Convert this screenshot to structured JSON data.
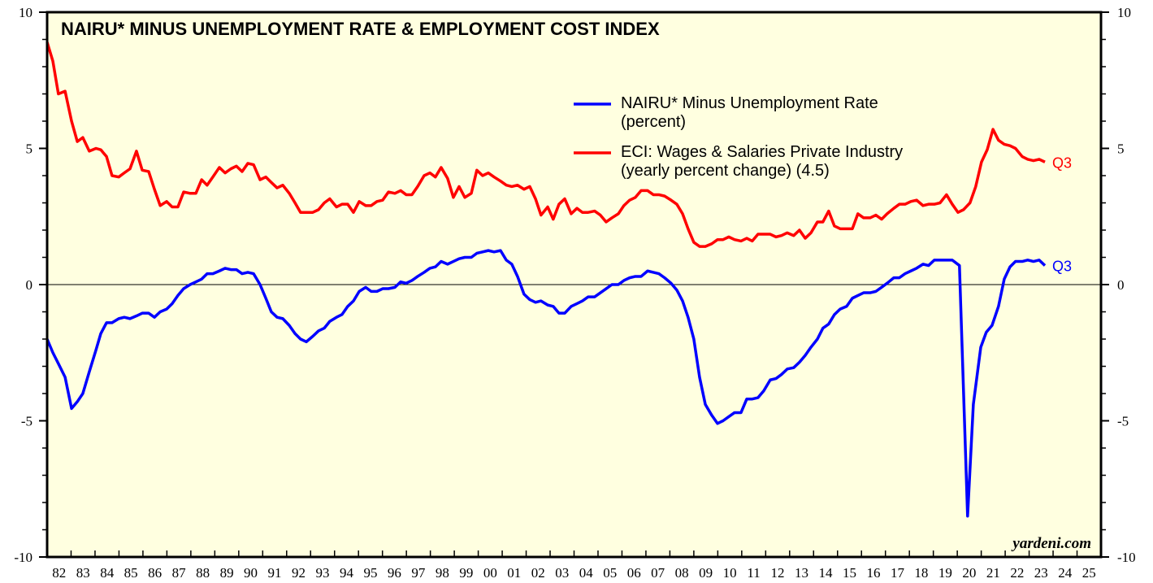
{
  "chart_data": {
    "type": "line",
    "title": "NAIRU* MINUS UNEMPLOYMENT RATE & EMPLOYMENT COST INDEX",
    "credit": "yardeni.com",
    "xlim": [
      1982,
      2026
    ],
    "xticks": [
      {
        "value": 1982,
        "label": "82"
      },
      {
        "value": 1983,
        "label": "83"
      },
      {
        "value": 1984,
        "label": "84"
      },
      {
        "value": 1985,
        "label": "85"
      },
      {
        "value": 1986,
        "label": "86"
      },
      {
        "value": 1987,
        "label": "87"
      },
      {
        "value": 1988,
        "label": "88"
      },
      {
        "value": 1989,
        "label": "89"
      },
      {
        "value": 1990,
        "label": "90"
      },
      {
        "value": 1991,
        "label": "91"
      },
      {
        "value": 1992,
        "label": "92"
      },
      {
        "value": 1993,
        "label": "93"
      },
      {
        "value": 1994,
        "label": "94"
      },
      {
        "value": 1995,
        "label": "95"
      },
      {
        "value": 1996,
        "label": "96"
      },
      {
        "value": 1997,
        "label": "97"
      },
      {
        "value": 1998,
        "label": "98"
      },
      {
        "value": 1999,
        "label": "99"
      },
      {
        "value": 2000,
        "label": "00"
      },
      {
        "value": 2001,
        "label": "01"
      },
      {
        "value": 2002,
        "label": "02"
      },
      {
        "value": 2003,
        "label": "03"
      },
      {
        "value": 2004,
        "label": "04"
      },
      {
        "value": 2005,
        "label": "05"
      },
      {
        "value": 2006,
        "label": "06"
      },
      {
        "value": 2007,
        "label": "07"
      },
      {
        "value": 2008,
        "label": "08"
      },
      {
        "value": 2009,
        "label": "09"
      },
      {
        "value": 2010,
        "label": "10"
      },
      {
        "value": 2011,
        "label": "11"
      },
      {
        "value": 2012,
        "label": "12"
      },
      {
        "value": 2013,
        "label": "13"
      },
      {
        "value": 2014,
        "label": "14"
      },
      {
        "value": 2015,
        "label": "15"
      },
      {
        "value": 2016,
        "label": "16"
      },
      {
        "value": 2017,
        "label": "17"
      },
      {
        "value": 2018,
        "label": "18"
      },
      {
        "value": 2019,
        "label": "19"
      },
      {
        "value": 2020,
        "label": "20"
      },
      {
        "value": 2021,
        "label": "21"
      },
      {
        "value": 2022,
        "label": "22"
      },
      {
        "value": 2023,
        "label": "23"
      },
      {
        "value": 2024,
        "label": "24"
      },
      {
        "value": 2025,
        "label": "25"
      }
    ],
    "ylim": [
      -10,
      10
    ],
    "yticks": [
      -10,
      -5,
      0,
      5,
      10
    ],
    "yticks_minor": [
      -9,
      -8,
      -7,
      -6,
      -4,
      -3,
      -2,
      -1,
      1,
      2,
      3,
      4,
      6,
      7,
      8,
      9
    ],
    "y2lim": [
      -10,
      10
    ],
    "y2ticks": [
      -10,
      -5,
      0,
      5,
      10
    ],
    "zero_line": true,
    "grid": false,
    "legend": "upper right",
    "background": "#ffffe0",
    "series": [
      {
        "name": "NAIRU* Minus Unemployment Rate\n(percent)",
        "color": "#0000ff",
        "end_label": "Q3",
        "x": [
          1982.0,
          1982.24,
          1982.47,
          1982.75,
          1983.02,
          1983.26,
          1983.49,
          1983.76,
          1984.04,
          1984.24,
          1984.48,
          1984.71,
          1984.99,
          1985.22,
          1985.46,
          1985.73,
          1985.97,
          1986.24,
          1986.48,
          1986.72,
          1986.99,
          1987.22,
          1987.46,
          1987.7,
          1987.97,
          1988.21,
          1988.45,
          1988.68,
          1988.92,
          1989.19,
          1989.43,
          1989.67,
          1989.9,
          1990.14,
          1990.38,
          1990.62,
          1990.89,
          1991.13,
          1991.36,
          1991.6,
          1991.84,
          1992.11,
          1992.35,
          1992.58,
          1992.82,
          1993.09,
          1993.33,
          1993.57,
          1993.8,
          1994.08,
          1994.31,
          1994.55,
          1994.79,
          1995.03,
          1995.3,
          1995.53,
          1995.77,
          1996.01,
          1996.25,
          1996.52,
          1996.76,
          1996.99,
          1997.23,
          1997.47,
          1997.74,
          1997.98,
          1998.21,
          1998.45,
          1998.72,
          1998.96,
          1999.2,
          1999.44,
          1999.71,
          1999.94,
          2000.18,
          2000.42,
          2000.66,
          2000.93,
          2001.17,
          2001.4,
          2001.64,
          2001.91,
          2002.15,
          2002.39,
          2002.62,
          2002.9,
          2003.13,
          2003.37,
          2003.61,
          2003.88,
          2004.12,
          2004.35,
          2004.59,
          2004.86,
          2005.1,
          2005.34,
          2005.58,
          2005.85,
          2006.08,
          2006.32,
          2006.56,
          2006.8,
          2007.07,
          2007.31,
          2007.54,
          2007.78,
          2008.05,
          2008.29,
          2008.53,
          2008.76,
          2009.0,
          2009.24,
          2009.48,
          2009.75,
          2009.99,
          2010.22,
          2010.46,
          2010.7,
          2010.97,
          2011.21,
          2011.44,
          2011.68,
          2011.92,
          2012.19,
          2012.43,
          2012.66,
          2012.9,
          2013.17,
          2013.41,
          2013.65,
          2013.89,
          2014.16,
          2014.39,
          2014.63,
          2014.87,
          2015.11,
          2015.38,
          2015.62,
          2015.85,
          2016.09,
          2016.36,
          2016.6,
          2016.84,
          2017.07,
          2017.35,
          2017.58,
          2017.82,
          2018.06,
          2018.3,
          2018.57,
          2018.8,
          2019.04,
          2019.28,
          2019.55,
          2019.79,
          2020.09,
          2020.43,
          2020.67,
          2020.98,
          2021.21,
          2021.45,
          2021.72,
          2021.96,
          2022.2,
          2022.43,
          2022.71,
          2022.94,
          2023.18,
          2023.42,
          2023.66
        ],
        "values": [
          -2.0,
          -2.5,
          -2.9,
          -3.4,
          -4.55,
          -4.3,
          -4.0,
          -3.2,
          -2.4,
          -1.8,
          -1.4,
          -1.4,
          -1.25,
          -1.2,
          -1.25,
          -1.15,
          -1.05,
          -1.05,
          -1.2,
          -1.0,
          -0.9,
          -0.7,
          -0.4,
          -0.15,
          0.0,
          0.1,
          0.2,
          0.4,
          0.4,
          0.5,
          0.6,
          0.55,
          0.55,
          0.4,
          0.45,
          0.4,
          0.0,
          -0.5,
          -1.0,
          -1.2,
          -1.25,
          -1.5,
          -1.8,
          -2.0,
          -2.1,
          -1.9,
          -1.7,
          -1.6,
          -1.35,
          -1.2,
          -1.1,
          -0.8,
          -0.6,
          -0.25,
          -0.1,
          -0.25,
          -0.25,
          -0.15,
          -0.15,
          -0.1,
          0.1,
          0.05,
          0.15,
          0.3,
          0.45,
          0.6,
          0.65,
          0.85,
          0.75,
          0.85,
          0.95,
          1.0,
          1.0,
          1.15,
          1.2,
          1.25,
          1.2,
          1.25,
          0.9,
          0.75,
          0.3,
          -0.35,
          -0.55,
          -0.65,
          -0.6,
          -0.75,
          -0.8,
          -1.05,
          -1.05,
          -0.8,
          -0.7,
          -0.6,
          -0.45,
          -0.45,
          -0.3,
          -0.15,
          0.0,
          0.0,
          0.15,
          0.25,
          0.3,
          0.3,
          0.5,
          0.45,
          0.4,
          0.25,
          0.05,
          -0.2,
          -0.6,
          -1.2,
          -2.0,
          -3.4,
          -4.4,
          -4.8,
          -5.1,
          -5.0,
          -4.85,
          -4.7,
          -4.7,
          -4.2,
          -4.2,
          -4.15,
          -3.9,
          -3.5,
          -3.45,
          -3.3,
          -3.1,
          -3.05,
          -2.85,
          -2.6,
          -2.3,
          -2.0,
          -1.6,
          -1.45,
          -1.1,
          -0.9,
          -0.8,
          -0.5,
          -0.4,
          -0.3,
          -0.3,
          -0.25,
          -0.1,
          0.05,
          0.25,
          0.25,
          0.4,
          0.5,
          0.6,
          0.75,
          0.7,
          0.9,
          0.9,
          0.9,
          0.9,
          0.7,
          -8.5,
          -4.4,
          -2.3,
          -1.75,
          -1.5,
          -0.8,
          0.2,
          0.65,
          0.85,
          0.85,
          0.9,
          0.85,
          0.9,
          0.7
        ]
      },
      {
        "name": "ECI: Wages & Salaries Private Industry\n(yearly percent change) (4.5)",
        "color": "#ff0000",
        "end_label": "Q3",
        "x": [
          1982.0,
          1982.24,
          1982.47,
          1982.75,
          1983.02,
          1983.26,
          1983.49,
          1983.76,
          1984.04,
          1984.24,
          1984.48,
          1984.71,
          1984.99,
          1985.22,
          1985.46,
          1985.73,
          1985.97,
          1986.24,
          1986.48,
          1986.72,
          1986.99,
          1987.22,
          1987.46,
          1987.7,
          1987.97,
          1988.21,
          1988.45,
          1988.68,
          1988.92,
          1989.19,
          1989.43,
          1989.67,
          1989.9,
          1990.14,
          1990.38,
          1990.62,
          1990.89,
          1991.13,
          1991.36,
          1991.6,
          1991.84,
          1992.11,
          1992.35,
          1992.58,
          1992.82,
          1993.09,
          1993.33,
          1993.57,
          1993.8,
          1994.08,
          1994.31,
          1994.55,
          1994.79,
          1995.03,
          1995.3,
          1995.53,
          1995.77,
          1996.01,
          1996.25,
          1996.52,
          1996.76,
          1996.99,
          1997.23,
          1997.47,
          1997.74,
          1997.98,
          1998.21,
          1998.45,
          1998.72,
          1998.96,
          1999.2,
          1999.44,
          1999.71,
          1999.94,
          2000.18,
          2000.42,
          2000.66,
          2000.93,
          2001.17,
          2001.4,
          2001.64,
          2001.91,
          2002.15,
          2002.39,
          2002.62,
          2002.9,
          2003.13,
          2003.37,
          2003.61,
          2003.88,
          2004.12,
          2004.35,
          2004.59,
          2004.86,
          2005.1,
          2005.34,
          2005.58,
          2005.85,
          2006.08,
          2006.32,
          2006.56,
          2006.8,
          2007.07,
          2007.31,
          2007.54,
          2007.78,
          2008.05,
          2008.29,
          2008.53,
          2008.76,
          2009.0,
          2009.24,
          2009.48,
          2009.75,
          2009.99,
          2010.22,
          2010.46,
          2010.7,
          2010.97,
          2011.21,
          2011.44,
          2011.68,
          2011.92,
          2012.19,
          2012.43,
          2012.66,
          2012.9,
          2013.17,
          2013.41,
          2013.65,
          2013.89,
          2014.16,
          2014.39,
          2014.63,
          2014.87,
          2015.11,
          2015.38,
          2015.62,
          2015.85,
          2016.09,
          2016.36,
          2016.6,
          2016.84,
          2017.07,
          2017.35,
          2017.58,
          2017.82,
          2018.06,
          2018.3,
          2018.57,
          2018.8,
          2019.04,
          2019.28,
          2019.55,
          2019.79,
          2020.03,
          2020.26,
          2020.53,
          2020.77,
          2021.01,
          2021.25,
          2021.49,
          2021.72,
          2021.96,
          2022.2,
          2022.43,
          2022.71,
          2022.94,
          2023.18,
          2023.42,
          2023.66
        ],
        "values": [
          8.9,
          8.2,
          7.0,
          7.1,
          6.0,
          5.25,
          5.4,
          4.9,
          5.0,
          4.95,
          4.7,
          4.0,
          3.95,
          4.1,
          4.25,
          4.9,
          4.2,
          4.15,
          3.5,
          2.9,
          3.05,
          2.85,
          2.85,
          3.4,
          3.35,
          3.35,
          3.85,
          3.65,
          3.95,
          4.3,
          4.1,
          4.25,
          4.35,
          4.15,
          4.45,
          4.4,
          3.85,
          3.95,
          3.75,
          3.55,
          3.65,
          3.35,
          3.0,
          2.65,
          2.65,
          2.65,
          2.75,
          3.0,
          3.15,
          2.85,
          2.95,
          2.95,
          2.65,
          3.05,
          2.9,
          2.9,
          3.05,
          3.1,
          3.4,
          3.35,
          3.45,
          3.3,
          3.3,
          3.6,
          4.0,
          4.1,
          3.95,
          4.3,
          3.9,
          3.2,
          3.6,
          3.2,
          3.35,
          4.2,
          4.0,
          4.1,
          3.95,
          3.8,
          3.65,
          3.6,
          3.65,
          3.5,
          3.6,
          3.15,
          2.55,
          2.85,
          2.4,
          2.95,
          3.15,
          2.6,
          2.8,
          2.65,
          2.65,
          2.7,
          2.55,
          2.3,
          2.45,
          2.6,
          2.9,
          3.1,
          3.2,
          3.45,
          3.45,
          3.3,
          3.3,
          3.25,
          3.1,
          2.95,
          2.6,
          2.05,
          1.55,
          1.4,
          1.4,
          1.5,
          1.65,
          1.65,
          1.75,
          1.65,
          1.6,
          1.7,
          1.6,
          1.85,
          1.85,
          1.85,
          1.75,
          1.8,
          1.9,
          1.8,
          2.0,
          1.7,
          1.9,
          2.3,
          2.3,
          2.7,
          2.15,
          2.05,
          2.05,
          2.05,
          2.6,
          2.45,
          2.45,
          2.55,
          2.4,
          2.6,
          2.8,
          2.95,
          2.95,
          3.05,
          3.1,
          2.9,
          2.95,
          2.95,
          3.0,
          3.3,
          2.95,
          2.65,
          2.75,
          3.0,
          3.6,
          4.5,
          4.95,
          5.7,
          5.3,
          5.15,
          5.1,
          5.0,
          4.7,
          4.6,
          4.55,
          4.6,
          4.5
        ]
      }
    ]
  }
}
